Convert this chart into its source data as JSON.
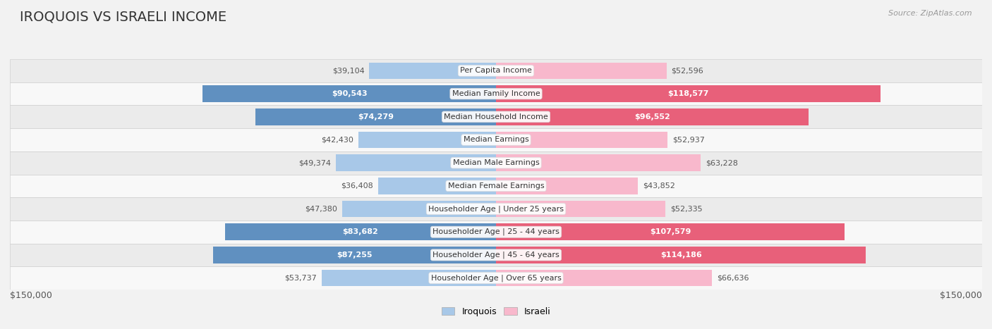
{
  "title": "IROQUOIS VS ISRAELI INCOME",
  "source": "Source: ZipAtlas.com",
  "categories": [
    "Per Capita Income",
    "Median Family Income",
    "Median Household Income",
    "Median Earnings",
    "Median Male Earnings",
    "Median Female Earnings",
    "Householder Age | Under 25 years",
    "Householder Age | 25 - 44 years",
    "Householder Age | 45 - 64 years",
    "Householder Age | Over 65 years"
  ],
  "iroquois_values": [
    39104,
    90543,
    74279,
    42430,
    49374,
    36408,
    47380,
    83682,
    87255,
    53737
  ],
  "israeli_values": [
    52596,
    118577,
    96552,
    52937,
    63228,
    43852,
    52335,
    107579,
    114186,
    66636
  ],
  "iroquois_labels": [
    "$39,104",
    "$90,543",
    "$74,279",
    "$42,430",
    "$49,374",
    "$36,408",
    "$47,380",
    "$83,682",
    "$87,255",
    "$53,737"
  ],
  "israeli_labels": [
    "$52,596",
    "$118,577",
    "$96,552",
    "$52,937",
    "$63,228",
    "$43,852",
    "$52,335",
    "$107,579",
    "$114,186",
    "$66,636"
  ],
  "max_value": 150000,
  "iroquois_light": "#a8c8e8",
  "israeli_light": "#f8b8cc",
  "iroquois_dark": "#6090c0",
  "israeli_dark": "#e8607a",
  "highlight_rows": [
    1,
    2,
    7,
    8
  ],
  "row_bg_light": "#f8f8f8",
  "row_bg_dark": "#ebebeb",
  "legend_iroquois": "Iroquois",
  "legend_israeli": "Israeli",
  "axis_label_left": "$150,000",
  "axis_label_right": "$150,000",
  "title_fontsize": 14,
  "label_fontsize": 8,
  "cat_fontsize": 8
}
